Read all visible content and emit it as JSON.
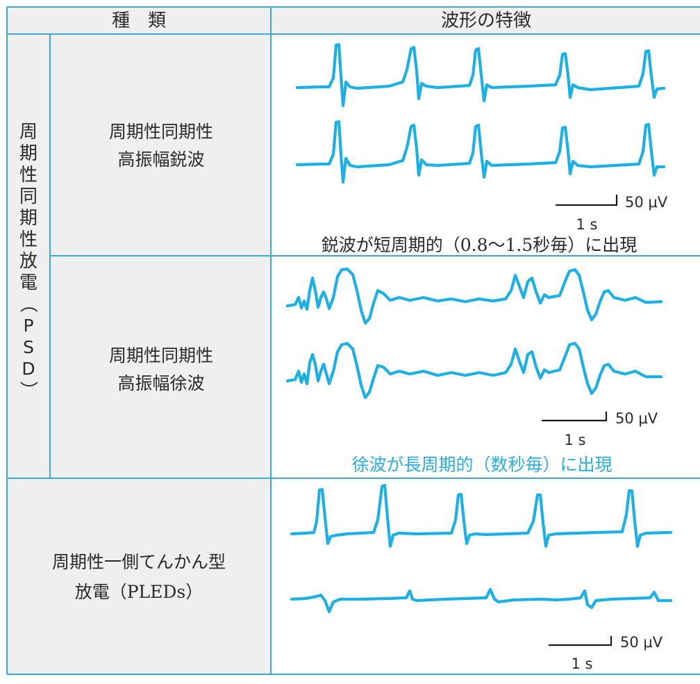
{
  "header": {
    "type_col": "種　類",
    "feature_col": "波形の特徴"
  },
  "psd": {
    "group_label": [
      "周",
      "期",
      "性",
      "同",
      "期",
      "性",
      "放",
      "電",
      "（",
      "P",
      "S",
      "D",
      "）"
    ],
    "sharp": {
      "label_line1": "周期性同期性",
      "label_line2": "高振幅鋭波",
      "scale_amp": "50 μV",
      "scale_time": "1 s",
      "caption": "鋭波が短周期的（0.8〜1.5秒毎）に出現"
    },
    "slow": {
      "label_line1": "周期性同期性",
      "label_line2": "高振幅徐波",
      "scale_amp": "50 μV",
      "scale_time": "1 s",
      "caption": "徐波が長周期的（数秒毎）に出現"
    }
  },
  "pleds": {
    "label_line1": "周期性一側てんかん型",
    "label_line2": "放電（PLEDs）",
    "scale_amp": "50 μV",
    "scale_time": "1 s"
  },
  "colors": {
    "wave": "#1bb0e6",
    "grid": "#3aa9e0",
    "label_bg": "#efefef",
    "caption_accent": "#28aee4",
    "text": "#2a2a2a"
  }
}
